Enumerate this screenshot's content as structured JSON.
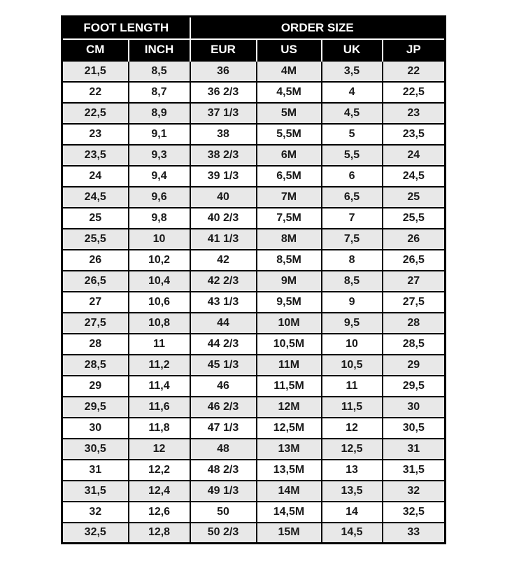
{
  "chart_data": {
    "type": "table",
    "column_groups": [
      {
        "label": "FOOT LENGTH",
        "span": 2
      },
      {
        "label": "ORDER SIZE",
        "span": 4
      }
    ],
    "columns": [
      "CM",
      "INCH",
      "EUR",
      "US",
      "UK",
      "JP"
    ],
    "rows": [
      [
        "21,5",
        "8,5",
        "36",
        "4M",
        "3,5",
        "22"
      ],
      [
        "22",
        "8,7",
        "36 2/3",
        "4,5M",
        "4",
        "22,5"
      ],
      [
        "22,5",
        "8,9",
        "37 1/3",
        "5M",
        "4,5",
        "23"
      ],
      [
        "23",
        "9,1",
        "38",
        "5,5M",
        "5",
        "23,5"
      ],
      [
        "23,5",
        "9,3",
        "38 2/3",
        "6M",
        "5,5",
        "24"
      ],
      [
        "24",
        "9,4",
        "39 1/3",
        "6,5M",
        "6",
        "24,5"
      ],
      [
        "24,5",
        "9,6",
        "40",
        "7M",
        "6,5",
        "25"
      ],
      [
        "25",
        "9,8",
        "40 2/3",
        "7,5M",
        "7",
        "25,5"
      ],
      [
        "25,5",
        "10",
        "41 1/3",
        "8M",
        "7,5",
        "26"
      ],
      [
        "26",
        "10,2",
        "42",
        "8,5M",
        "8",
        "26,5"
      ],
      [
        "26,5",
        "10,4",
        "42 2/3",
        "9M",
        "8,5",
        "27"
      ],
      [
        "27",
        "10,6",
        "43 1/3",
        "9,5M",
        "9",
        "27,5"
      ],
      [
        "27,5",
        "10,8",
        "44",
        "10M",
        "9,5",
        "28"
      ],
      [
        "28",
        "11",
        "44 2/3",
        "10,5M",
        "10",
        "28,5"
      ],
      [
        "28,5",
        "11,2",
        "45 1/3",
        "11M",
        "10,5",
        "29"
      ],
      [
        "29",
        "11,4",
        "46",
        "11,5M",
        "11",
        "29,5"
      ],
      [
        "29,5",
        "11,6",
        "46 2/3",
        "12M",
        "11,5",
        "30"
      ],
      [
        "30",
        "11,8",
        "47 1/3",
        "12,5M",
        "12",
        "30,5"
      ],
      [
        "30,5",
        "12",
        "48",
        "13M",
        "12,5",
        "31"
      ],
      [
        "31",
        "12,2",
        "48 2/3",
        "13,5M",
        "13",
        "31,5"
      ],
      [
        "31,5",
        "12,4",
        "49 1/3",
        "14M",
        "13,5",
        "32"
      ],
      [
        "32",
        "12,6",
        "50",
        "14,5M",
        "14",
        "32,5"
      ],
      [
        "32,5",
        "12,8",
        "50 2/3",
        "15M",
        "14,5",
        "33"
      ]
    ],
    "layout": {
      "first_data_row_shaded": true,
      "legend": "none",
      "grid": "full black cell borders, white dividers inside black header"
    },
    "colors": {
      "header_bg": "#000000",
      "header_text": "#ffffff",
      "shaded_row_bg": "#e8e8e8",
      "plain_row_bg": "#ffffff",
      "border": "#000000",
      "header_divider": "#ffffff",
      "cell_text": "#1a1a1a",
      "page_bg": "#ffffff"
    }
  }
}
